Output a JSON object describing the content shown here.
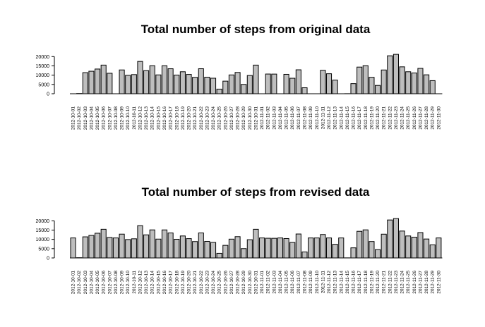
{
  "chart_data": [
    {
      "type": "bar",
      "title": "Total number of steps from original data",
      "xlabel": "",
      "ylabel": "",
      "ylim": [
        0,
        22000
      ],
      "yticks": [
        0,
        5000,
        10000,
        15000,
        20000
      ],
      "grid": false,
      "categories": [
        "2012-10-01",
        "2012-10-02",
        "2012-10-03",
        "2012-10-04",
        "2012-10-05",
        "2012-10-06",
        "2012-10-07",
        "2012-10-08",
        "2012-10-09",
        "2012-10-10",
        "2012-10-11",
        "2012-10-12",
        "2012-10-13",
        "2012-10-14",
        "2012-10-15",
        "2012-10-16",
        "2012-10-17",
        "2012-10-18",
        "2012-10-19",
        "2012-10-20",
        "2012-10-21",
        "2012-10-22",
        "2012-10-23",
        "2012-10-24",
        "2012-10-25",
        "2012-10-26",
        "2012-10-27",
        "2012-10-28",
        "2012-10-29",
        "2012-10-30",
        "2012-10-31",
        "2012-11-01",
        "2012-11-02",
        "2012-11-03",
        "2012-11-04",
        "2012-11-05",
        "2012-11-06",
        "2012-11-07",
        "2012-11-08",
        "2012-11-09",
        "2012-11-10",
        "2012-11-11",
        "2012-11-12",
        "2012-11-13",
        "2012-11-14",
        "2012-11-15",
        "2012-11-16",
        "2012-11-17",
        "2012-11-18",
        "2012-11-19",
        "2012-11-20",
        "2012-11-21",
        "2012-11-22",
        "2012-11-23",
        "2012-11-24",
        "2012-11-25",
        "2012-11-26",
        "2012-11-27",
        "2012-11-28",
        "2012-11-29",
        "2012-11-30"
      ],
      "values": [
        0,
        126,
        11352,
        12116,
        13294,
        15420,
        11015,
        0,
        12811,
        9900,
        10304,
        17382,
        12426,
        15098,
        10139,
        15084,
        13452,
        10056,
        11829,
        10395,
        8821,
        13460,
        8918,
        8355,
        2492,
        6778,
        10119,
        11458,
        5018,
        9819,
        15414,
        0,
        10600,
        10571,
        0,
        10439,
        8334,
        12883,
        3219,
        0,
        0,
        12608,
        10765,
        7336,
        0,
        41,
        5441,
        14339,
        15110,
        8841,
        4472,
        12787,
        20427,
        21194,
        14478,
        11834,
        11162,
        13646,
        10183,
        7047,
        0
      ]
    },
    {
      "type": "bar",
      "title": "Total number of steps from revised data",
      "xlabel": "",
      "ylabel": "",
      "ylim": [
        0,
        22000
      ],
      "yticks": [
        0,
        5000,
        10000,
        15000,
        20000
      ],
      "grid": false,
      "categories": [
        "2012-10-01",
        "2012-10-02",
        "2012-10-03",
        "2012-10-04",
        "2012-10-05",
        "2012-10-06",
        "2012-10-07",
        "2012-10-08",
        "2012-10-09",
        "2012-10-10",
        "2012-10-11",
        "2012-10-12",
        "2012-10-13",
        "2012-10-14",
        "2012-10-15",
        "2012-10-16",
        "2012-10-17",
        "2012-10-18",
        "2012-10-19",
        "2012-10-20",
        "2012-10-21",
        "2012-10-22",
        "2012-10-23",
        "2012-10-24",
        "2012-10-25",
        "2012-10-26",
        "2012-10-27",
        "2012-10-28",
        "2012-10-29",
        "2012-10-30",
        "2012-10-31",
        "2012-11-01",
        "2012-11-02",
        "2012-11-03",
        "2012-11-04",
        "2012-11-05",
        "2012-11-06",
        "2012-11-07",
        "2012-11-08",
        "2012-11-09",
        "2012-11-10",
        "2012-11-11",
        "2012-11-12",
        "2012-11-13",
        "2012-11-14",
        "2012-11-15",
        "2012-11-16",
        "2012-11-17",
        "2012-11-18",
        "2012-11-19",
        "2012-11-20",
        "2012-11-21",
        "2012-11-22",
        "2012-11-23",
        "2012-11-24",
        "2012-11-25",
        "2012-11-26",
        "2012-11-27",
        "2012-11-28",
        "2012-11-29",
        "2012-11-30"
      ],
      "values": [
        10766,
        126,
        11352,
        12116,
        13294,
        15420,
        11015,
        10766,
        12811,
        9900,
        10304,
        17382,
        12426,
        15098,
        10139,
        15084,
        13452,
        10056,
        11829,
        10395,
        8821,
        13460,
        8918,
        8355,
        2492,
        6778,
        10119,
        11458,
        5018,
        9819,
        15414,
        10766,
        10600,
        10571,
        10766,
        10439,
        8334,
        12883,
        3219,
        10766,
        10766,
        12608,
        10765,
        7336,
        10766,
        41,
        5441,
        14339,
        15110,
        8841,
        4472,
        12787,
        20427,
        21194,
        14478,
        11834,
        11162,
        13646,
        10183,
        7047,
        10766
      ]
    }
  ]
}
